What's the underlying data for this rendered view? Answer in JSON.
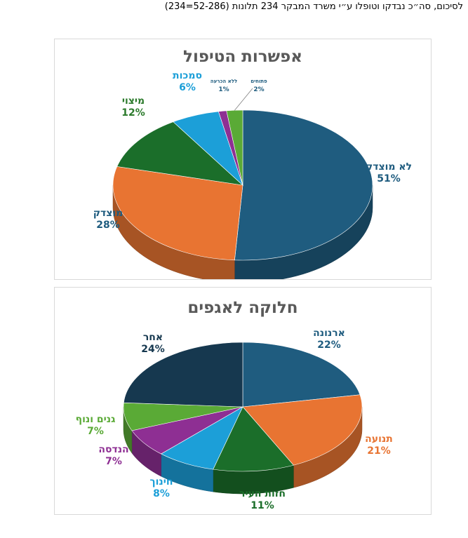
{
  "heading": "לסיכום, סה״כ נבדקו וטופלו ע״י משרד המבקר 234 תלונות  (52-286=234)",
  "chart_data": [
    {
      "type": "pie",
      "title": "אפשרות הטיפול",
      "slices": [
        {
          "label": "לא מוצדק",
          "pct_label": "51%",
          "value": 51,
          "color": "#1f5c7f",
          "label_color": "#1f5c7f"
        },
        {
          "label": "מוצדק",
          "pct_label": "28%",
          "value": 28,
          "color": "#e87432",
          "label_color": "#1f5c7f"
        },
        {
          "label": "מיצוי",
          "pct_label": "12%",
          "value": 12,
          "color": "#1b6e2a",
          "label_color": "#2b7a2b"
        },
        {
          "label": "סמכות",
          "pct_label": "6%",
          "value": 6,
          "color": "#1c9fd8",
          "label_color": "#1c9fd8"
        },
        {
          "label": "ללא הכרעה",
          "pct_label": "1%",
          "value": 1,
          "color": "#8e2f93",
          "label_color": "#1f5c7f"
        },
        {
          "label": "פתוחים",
          "pct_label": "2%",
          "value": 2,
          "color": "#5aaa36",
          "label_color": "#1f5c7f"
        }
      ]
    },
    {
      "type": "pie",
      "title": "חלוקה לאגפים",
      "slices": [
        {
          "label": "ארנונה",
          "pct_label": "22%",
          "value": 22,
          "color": "#1f5c7f",
          "label_color": "#1f5c7f"
        },
        {
          "label": "תנועה",
          "pct_label": "21%",
          "value": 21,
          "color": "#e87432",
          "label_color": "#e87432"
        },
        {
          "label": "חזות העיר",
          "pct_label": "11%",
          "value": 11,
          "color": "#1b6e2a",
          "label_color": "#1b6e2a"
        },
        {
          "label": "חינוך",
          "pct_label": "8%",
          "value": 8,
          "color": "#1c9fd8",
          "label_color": "#1c9fd8"
        },
        {
          "label": "הנדסה",
          "pct_label": "7%",
          "value": 7,
          "color": "#8e2f93",
          "label_color": "#8e2f93"
        },
        {
          "label": "גנים ונוף",
          "pct_label": "7%",
          "value": 7,
          "color": "#5aaa36",
          "label_color": "#5aaa36"
        },
        {
          "label": "אחר",
          "pct_label": "24%",
          "value": 24,
          "color": "#16384f",
          "label_color": "#16384f"
        }
      ]
    }
  ]
}
